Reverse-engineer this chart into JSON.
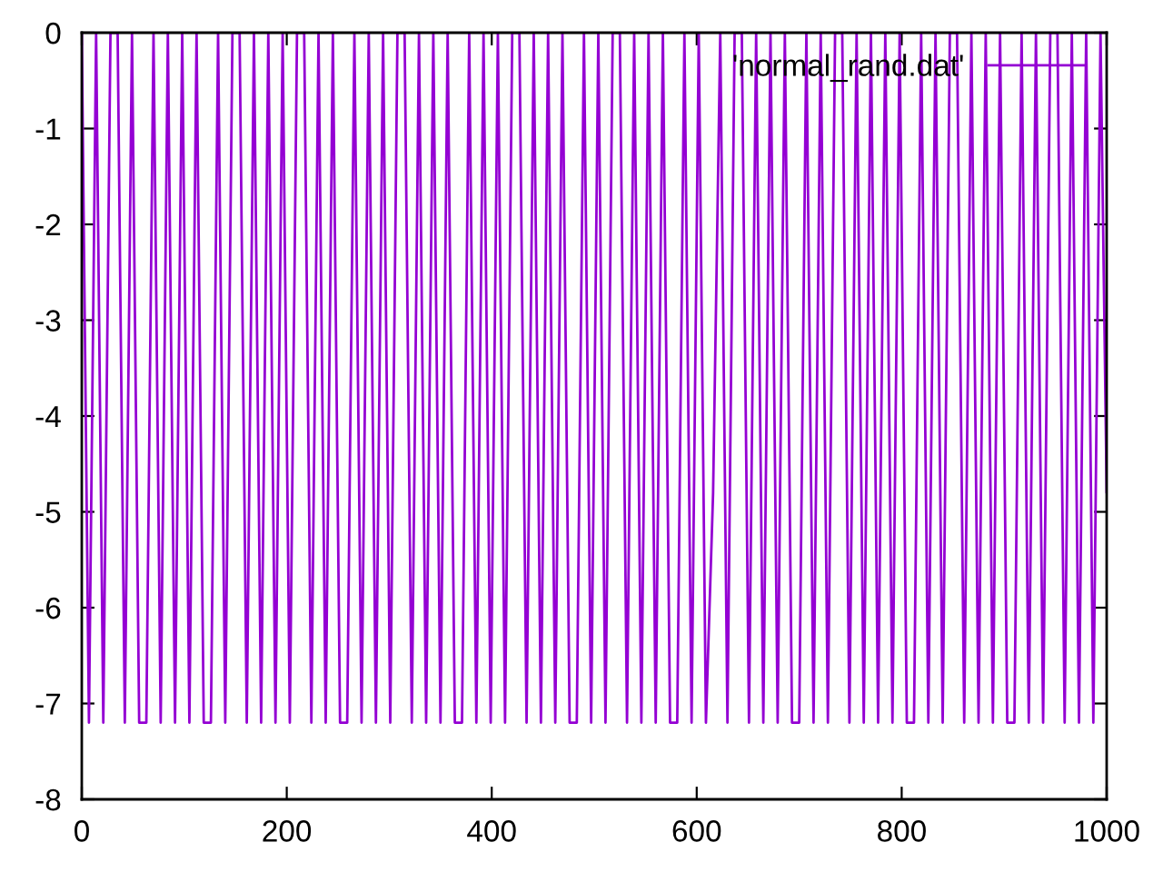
{
  "chart_data": {
    "type": "line",
    "x": [
      0,
      7,
      14,
      21,
      28,
      35,
      42,
      49,
      56,
      63,
      70,
      77,
      84,
      91,
      98,
      105,
      112,
      119,
      126,
      133,
      140,
      147,
      154,
      161,
      168,
      175,
      182,
      189,
      196,
      203,
      210,
      217,
      224,
      231,
      238,
      245,
      252,
      259,
      266,
      273,
      280,
      287,
      294,
      301,
      308,
      315,
      322,
      329,
      336,
      343,
      350,
      357,
      364,
      371,
      378,
      385,
      392,
      399,
      406,
      413,
      420,
      427,
      434,
      441,
      448,
      455,
      462,
      469,
      476,
      483,
      490,
      497,
      504,
      511,
      518,
      525,
      532,
      539,
      546,
      553,
      560,
      567,
      574,
      581,
      588,
      595,
      602,
      609,
      616,
      623,
      630,
      637,
      644,
      651,
      658,
      665,
      672,
      679,
      686,
      693,
      700,
      707,
      714,
      721,
      728,
      735,
      742,
      749,
      756,
      763,
      770,
      777,
      784,
      791,
      798,
      805,
      812,
      819,
      826,
      833,
      840,
      847,
      854,
      861,
      868,
      875,
      882,
      889,
      896,
      903,
      910,
      917,
      924,
      931,
      938,
      945,
      952,
      959,
      966,
      973,
      980,
      987,
      994,
      1000
    ],
    "series": [
      {
        "name": "'normal_rand.dat'",
        "color": "#9400d3",
        "values": [
          0,
          -7.2,
          0,
          -7.2,
          0,
          0,
          -7.2,
          0,
          -7.2,
          -7.2,
          0,
          -7.2,
          0,
          -7.2,
          0,
          -7.2,
          0,
          -7.2,
          -7.2,
          0,
          -7.2,
          0,
          0,
          -7.2,
          0,
          -7.2,
          0,
          -7.2,
          0,
          -7.2,
          0,
          0,
          -7.2,
          0,
          -7.2,
          0,
          -7.2,
          -7.2,
          0,
          -7.2,
          0,
          -7.2,
          0,
          -7.2,
          0,
          0,
          -7.2,
          0,
          -7.2,
          0,
          -7.2,
          0,
          -7.2,
          -7.2,
          0,
          -7.2,
          0,
          -7.2,
          0,
          -7.2,
          0,
          0,
          -7.2,
          0,
          -7.2,
          0,
          -7.2,
          0,
          -7.2,
          -7.2,
          0,
          -7.2,
          0,
          -7.2,
          0,
          0,
          -7.2,
          0,
          -7.2,
          0,
          -7.2,
          0,
          -7.2,
          -7.2,
          0,
          -7.2,
          0,
          -7.2,
          -4.8,
          0,
          -7.2,
          0,
          0,
          -7.2,
          0,
          -7.2,
          0,
          -7.2,
          0,
          -7.2,
          -7.2,
          0,
          -7.2,
          0,
          -7.2,
          0,
          0,
          -7.2,
          0,
          -7.2,
          0,
          -7.2,
          0,
          -7.2,
          0,
          -7.2,
          -7.2,
          0,
          -7.2,
          0,
          -7.2,
          0,
          0,
          -7.2,
          0,
          -7.2,
          0,
          -7.2,
          0,
          -7.2,
          -7.2,
          0,
          -7.2,
          0,
          -7.2,
          0,
          0,
          -7.2,
          0,
          -7.2,
          0,
          -7.2,
          0,
          -4.8
        ]
      }
    ],
    "xlim": [
      0,
      1000
    ],
    "xticks": [
      0,
      200,
      400,
      600,
      800,
      1000
    ],
    "ylim": [
      -8,
      0
    ],
    "yticks": [
      -8,
      -7,
      -6,
      -5,
      -4,
      -3,
      -2,
      -1,
      0
    ],
    "legend": "top right",
    "marker": "none",
    "line_style": "solid"
  }
}
